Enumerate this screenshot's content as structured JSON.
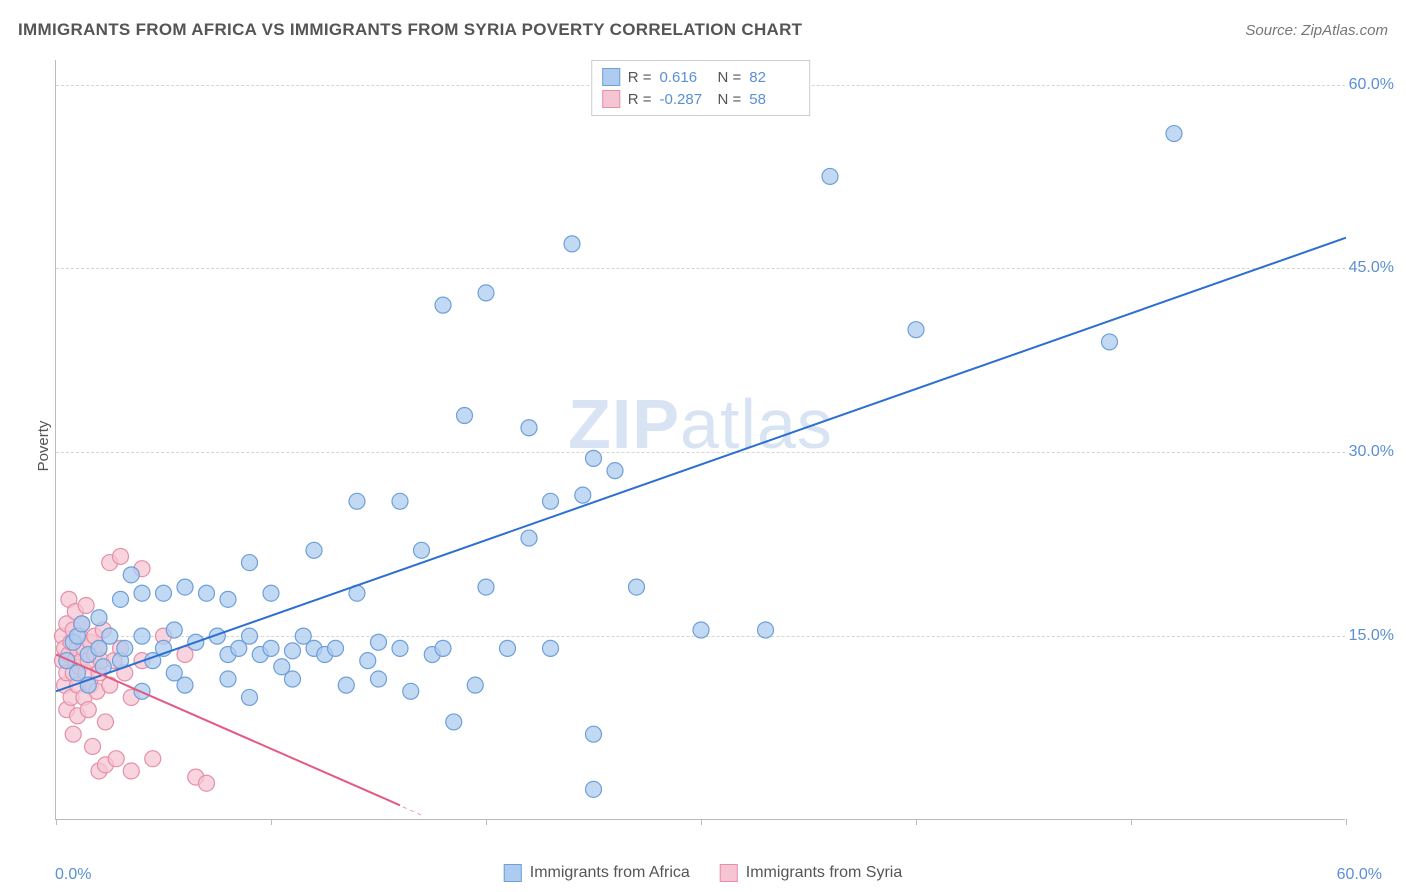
{
  "header": {
    "title": "IMMIGRANTS FROM AFRICA VS IMMIGRANTS FROM SYRIA POVERTY CORRELATION CHART",
    "source_prefix": "Source: ",
    "source": "ZipAtlas.com"
  },
  "chart": {
    "type": "scatter",
    "ylabel": "Poverty",
    "watermark": "ZIPatlas",
    "xlim": [
      0,
      60
    ],
    "ylim": [
      0,
      62
    ],
    "yticks": [
      15,
      30,
      45,
      60
    ],
    "ytick_labels": [
      "15.0%",
      "30.0%",
      "45.0%",
      "60.0%"
    ],
    "xtick_positions": [
      0,
      10,
      20,
      30,
      40,
      50,
      60
    ],
    "xtick_labels_shown": {
      "0": "0.0%",
      "60": "60.0%"
    },
    "background_color": "#ffffff",
    "grid_color": "#d5d5d5",
    "axis_color": "#bbbbbb",
    "marker_radius": 8,
    "marker_stroke_width": 1.2,
    "trend_line_width": 2,
    "series": [
      {
        "name": "Immigrants from Africa",
        "color_fill": "#aeccf0",
        "color_stroke": "#6f9fd8",
        "line_color": "#2b6fd0",
        "R": "0.616",
        "N": "82",
        "trend": {
          "x1": 0,
          "y1": 10.5,
          "x2": 60,
          "y2": 47.5
        },
        "points": [
          [
            0.5,
            13
          ],
          [
            0.8,
            14.5
          ],
          [
            1,
            12
          ],
          [
            1,
            15
          ],
          [
            1.2,
            16
          ],
          [
            1.5,
            13.5
          ],
          [
            1.5,
            11
          ],
          [
            2,
            14
          ],
          [
            2,
            16.5
          ],
          [
            2.2,
            12.5
          ],
          [
            2.5,
            15
          ],
          [
            3,
            13
          ],
          [
            3,
            18
          ],
          [
            3.2,
            14
          ],
          [
            3.5,
            20
          ],
          [
            4,
            18.5
          ],
          [
            4,
            15
          ],
          [
            4.5,
            13
          ],
          [
            5,
            18.5
          ],
          [
            5,
            14
          ],
          [
            5.5,
            15.5
          ],
          [
            5.5,
            12
          ],
          [
            6,
            19
          ],
          [
            6.5,
            14.5
          ],
          [
            7,
            18.5
          ],
          [
            7.5,
            15
          ],
          [
            8,
            13.5
          ],
          [
            8,
            18
          ],
          [
            8.5,
            14
          ],
          [
            9,
            21
          ],
          [
            9,
            15
          ],
          [
            9.5,
            13.5
          ],
          [
            10,
            18.5
          ],
          [
            10,
            14
          ],
          [
            10.5,
            12.5
          ],
          [
            11,
            13.8
          ],
          [
            11,
            11.5
          ],
          [
            11.5,
            15
          ],
          [
            12,
            14
          ],
          [
            12,
            22
          ],
          [
            12.5,
            13.5
          ],
          [
            13,
            14
          ],
          [
            13.5,
            11
          ],
          [
            14,
            18.5
          ],
          [
            14,
            26
          ],
          [
            14.5,
            13
          ],
          [
            15,
            14.5
          ],
          [
            15,
            11.5
          ],
          [
            16,
            14
          ],
          [
            16,
            26
          ],
          [
            16.5,
            10.5
          ],
          [
            17,
            22
          ],
          [
            17.5,
            13.5
          ],
          [
            18,
            42
          ],
          [
            18,
            14
          ],
          [
            18.5,
            8
          ],
          [
            19,
            33
          ],
          [
            19.5,
            11
          ],
          [
            20,
            19
          ],
          [
            20,
            43
          ],
          [
            21,
            14
          ],
          [
            22,
            23
          ],
          [
            22,
            32
          ],
          [
            23,
            26
          ],
          [
            23,
            14
          ],
          [
            24,
            47
          ],
          [
            24.5,
            26.5
          ],
          [
            25,
            29.5
          ],
          [
            25,
            2.5
          ],
          [
            25,
            7
          ],
          [
            26,
            28.5
          ],
          [
            27,
            19
          ],
          [
            30,
            15.5
          ],
          [
            33,
            15.5
          ],
          [
            36,
            52.5
          ],
          [
            40,
            40
          ],
          [
            49,
            39
          ],
          [
            52,
            56
          ],
          [
            4,
            10.5
          ],
          [
            6,
            11
          ],
          [
            8,
            11.5
          ],
          [
            9,
            10
          ]
        ]
      },
      {
        "name": "Immigrants from Syria",
        "color_fill": "#f6c5d3",
        "color_stroke": "#e68fa8",
        "line_color": "#e35a82",
        "R": "-0.287",
        "N": "58",
        "trend": {
          "x1": 0,
          "y1": 13.5,
          "x2": 16,
          "y2": 1.2
        },
        "trend_dashed_extension": {
          "x1": 10,
          "y1": 5.8,
          "x2": 17,
          "y2": 0.4
        },
        "points": [
          [
            0.3,
            13
          ],
          [
            0.3,
            15
          ],
          [
            0.4,
            11
          ],
          [
            0.4,
            14
          ],
          [
            0.5,
            12
          ],
          [
            0.5,
            16
          ],
          [
            0.5,
            9
          ],
          [
            0.6,
            13.5
          ],
          [
            0.6,
            18
          ],
          [
            0.7,
            10
          ],
          [
            0.7,
            14.5
          ],
          [
            0.8,
            12
          ],
          [
            0.8,
            15.5
          ],
          [
            0.8,
            7
          ],
          [
            0.9,
            13
          ],
          [
            0.9,
            17
          ],
          [
            1,
            11
          ],
          [
            1,
            14
          ],
          [
            1,
            8.5
          ],
          [
            1.1,
            15
          ],
          [
            1.1,
            12.5
          ],
          [
            1.2,
            13
          ],
          [
            1.2,
            16
          ],
          [
            1.3,
            10
          ],
          [
            1.3,
            14
          ],
          [
            1.4,
            12
          ],
          [
            1.4,
            17.5
          ],
          [
            1.5,
            13
          ],
          [
            1.5,
            9
          ],
          [
            1.6,
            14.5
          ],
          [
            1.6,
            11
          ],
          [
            1.7,
            6
          ],
          [
            1.8,
            13.5
          ],
          [
            1.8,
            15
          ],
          [
            1.9,
            10.5
          ],
          [
            2,
            14
          ],
          [
            2,
            12
          ],
          [
            2,
            4
          ],
          [
            2.1,
            13
          ],
          [
            2.2,
            15.5
          ],
          [
            2.3,
            8
          ],
          [
            2.3,
            4.5
          ],
          [
            2.5,
            11
          ],
          [
            2.5,
            21
          ],
          [
            2.7,
            13
          ],
          [
            2.8,
            5
          ],
          [
            3,
            14
          ],
          [
            3,
            21.5
          ],
          [
            3.2,
            12
          ],
          [
            3.5,
            10
          ],
          [
            3.5,
            4
          ],
          [
            4,
            13
          ],
          [
            4,
            20.5
          ],
          [
            4.5,
            5
          ],
          [
            5,
            15
          ],
          [
            6,
            13.5
          ],
          [
            6.5,
            3.5
          ],
          [
            7,
            3
          ]
        ]
      }
    ]
  },
  "legend_top": {
    "r_label": "R =",
    "n_label": "N ="
  },
  "legend_bottom": {
    "items": [
      "Immigrants from Africa",
      "Immigrants from Syria"
    ]
  }
}
